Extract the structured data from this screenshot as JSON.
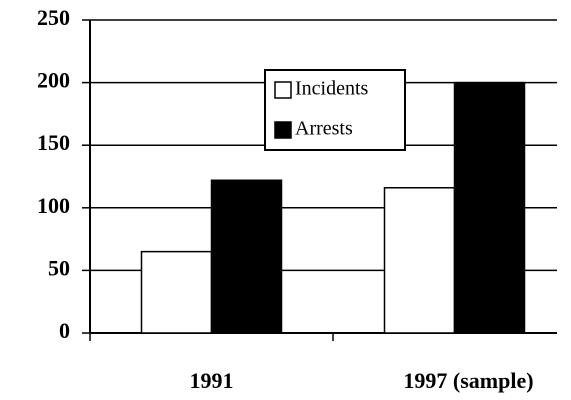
{
  "chart_data": {
    "type": "bar",
    "categories": [
      "1991",
      "1997 (sample)"
    ],
    "series": [
      {
        "name": "Incidents",
        "color": "#ffffff",
        "values": [
          65,
          116
        ]
      },
      {
        "name": "Arrests",
        "color": "#000000",
        "values": [
          122,
          200
        ]
      }
    ],
    "ylim": [
      0,
      250
    ],
    "yticks": [
      0,
      50,
      100,
      150,
      200,
      250
    ],
    "grid": true,
    "legend": "top"
  }
}
